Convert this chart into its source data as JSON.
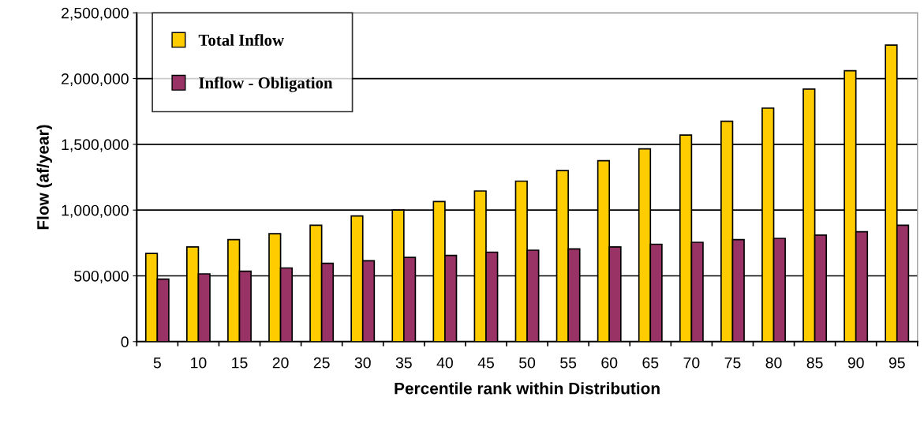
{
  "chart_data": {
    "type": "bar",
    "xlabel": "Percentile rank within Distribution",
    "ylabel": "Flow (af/year)",
    "categories": [
      "5",
      "10",
      "15",
      "20",
      "25",
      "30",
      "35",
      "40",
      "45",
      "50",
      "55",
      "60",
      "65",
      "70",
      "75",
      "80",
      "85",
      "90",
      "95"
    ],
    "series": [
      {
        "name": "Total Inflow",
        "color": "#ffcc00",
        "values": [
          670000,
          720000,
          775000,
          820000,
          885000,
          955000,
          1000000,
          1065000,
          1145000,
          1220000,
          1300000,
          1375000,
          1465000,
          1570000,
          1675000,
          1775000,
          1920000,
          2060000,
          2255000
        ]
      },
      {
        "name": "Inflow - Obligation",
        "color": "#993366",
        "values": [
          475000,
          515000,
          535000,
          560000,
          595000,
          615000,
          640000,
          655000,
          680000,
          695000,
          705000,
          720000,
          740000,
          755000,
          775000,
          785000,
          810000,
          835000,
          885000
        ]
      }
    ],
    "ylim": [
      0,
      2500000
    ],
    "yticks": [
      {
        "value": 0,
        "label": "0"
      },
      {
        "value": 500000,
        "label": "500,000"
      },
      {
        "value": 1000000,
        "label": "1,000,000"
      },
      {
        "value": 1500000,
        "label": "1,500,000"
      },
      {
        "value": 2000000,
        "label": "2,000,000"
      },
      {
        "value": 2500000,
        "label": "2,500,000"
      }
    ],
    "grid": "y",
    "legend": "top left"
  }
}
